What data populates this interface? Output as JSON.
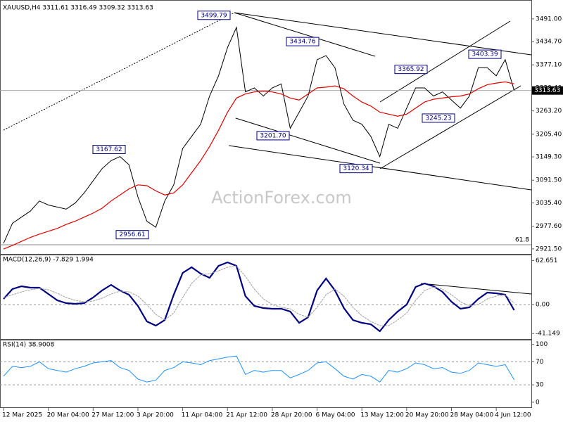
{
  "chart_data": [
    {
      "type": "line",
      "title": "XAUUSD,H4  3311.61 3316.49 3309.32 3313.63",
      "watermark": "ActionForex.com",
      "categories": [
        "12 Mar 2025",
        null,
        null,
        null,
        null,
        "20 Mar 04:00",
        null,
        null,
        null,
        null,
        "27 Mar 12:00",
        null,
        null,
        null,
        null,
        "3 Apr 20:00",
        null,
        null,
        null,
        null,
        "11 Apr 04:00",
        null,
        null,
        null,
        null,
        "21 Apr 12:00",
        null,
        null,
        null,
        null,
        "28 Apr 20:00",
        null,
        null,
        null,
        null,
        "6 May 04:00",
        null,
        null,
        null,
        null,
        "13 May 12:00",
        null,
        null,
        null,
        null,
        "20 May 20:00",
        null,
        null,
        null,
        null,
        "28 May 04:00",
        null,
        null,
        null,
        null,
        "4 Jun 12:00",
        null,
        null
      ],
      "series": [
        {
          "color": "#000000",
          "values": [
            2935,
            2985,
            3000,
            3015,
            3040,
            3030,
            3025,
            3020,
            3035,
            3060,
            3090,
            3120,
            3140,
            3150,
            3130,
            3050,
            2990,
            2975,
            3040,
            3080,
            3170,
            3200,
            3230,
            3300,
            3350,
            3420,
            3470,
            3310,
            3320,
            3300,
            3320,
            3330,
            3220,
            3260,
            3300,
            3390,
            3400,
            3370,
            3280,
            3240,
            3230,
            3200,
            3150,
            3230,
            3220,
            3270,
            3320,
            3320,
            3300,
            3310,
            3290,
            3270,
            3300,
            3370,
            3370,
            3350,
            3390,
            3313.63
          ]
        },
        {
          "color": "#e00000",
          "values": [
            2921,
            2930,
            2940,
            2950,
            2958,
            2965,
            2972,
            2982,
            2990,
            3000,
            3010,
            3022,
            3040,
            3055,
            3070,
            3080,
            3078,
            3065,
            3055,
            3060,
            3080,
            3110,
            3140,
            3175,
            3215,
            3260,
            3295,
            3305,
            3310,
            3312,
            3310,
            3305,
            3295,
            3290,
            3305,
            3320,
            3322,
            3325,
            3318,
            3300,
            3285,
            3275,
            3260,
            3255,
            3250,
            3255,
            3270,
            3285,
            3292,
            3295,
            3298,
            3300,
            3305,
            3318,
            3328,
            3332,
            3335,
            3330
          ]
        }
      ],
      "last_price": 3313.63,
      "annotations": [
        3499.79,
        3434.76,
        3365.92,
        3403.39,
        3245.23,
        {
          "value": 3201.7,
          "label": "3201.70"
        },
        3167.62,
        3120.34,
        2956.61
      ],
      "fib_label": "61.8",
      "ylim": [
        2909,
        3529
      ],
      "yticks": [
        {
          "value": 3491,
          "label": "3491.00"
        },
        {
          "value": 3434.7,
          "label": "3434.70"
        },
        {
          "value": 3377.1,
          "label": "3377.10"
        },
        {
          "value": 3320.4,
          "label": "3320.40"
        },
        {
          "value": 3263.2,
          "label": "3263.20"
        },
        {
          "value": 3205.4,
          "label": "3205.40"
        },
        {
          "value": 3149.3,
          "label": "3149.30"
        },
        {
          "value": 3091.5,
          "label": "3091.50"
        },
        {
          "value": 3035.4,
          "label": "3035.40"
        },
        {
          "value": 2977.6,
          "label": "2977.60"
        },
        {
          "value": 2921.5,
          "label": "2921.50"
        }
      ],
      "grid": false
    },
    {
      "type": "line",
      "title": "MACD(12,26,9) -7.829 1.994",
      "series": [
        {
          "color": "#000080",
          "values": [
            8,
            22,
            26,
            24,
            24,
            15,
            6,
            2,
            1,
            2,
            10,
            20,
            28,
            20,
            14,
            -2,
            -24,
            -30,
            -22,
            14,
            45,
            53,
            44,
            38,
            55,
            60,
            55,
            12,
            -2,
            -5,
            -6,
            -6,
            -10,
            -26,
            -18,
            20,
            37,
            20,
            -5,
            -22,
            -26,
            -28,
            -38,
            -22,
            -10,
            0,
            25,
            30,
            26,
            18,
            4,
            -6,
            -4,
            8,
            17,
            16,
            14,
            -8
          ]
        },
        {
          "color": "#a0a0a0",
          "values": [
            10,
            14,
            18,
            21,
            23,
            21,
            16,
            10,
            6,
            4,
            5,
            9,
            15,
            19,
            18,
            12,
            0,
            -14,
            -22,
            -12,
            10,
            30,
            42,
            44,
            48,
            53,
            55,
            40,
            22,
            8,
            0,
            -4,
            -6,
            -14,
            -18,
            -4,
            14,
            22,
            12,
            -4,
            -16,
            -24,
            -30,
            -30,
            -22,
            -12,
            6,
            20,
            25,
            22,
            14,
            4,
            -2,
            0,
            8,
            12,
            14,
            2
          ]
        }
      ],
      "levels": [
        0
      ],
      "ylim": [
        -49,
        71
      ],
      "yticks": [
        62.651,
        {
          "value": 0,
          "label": "0.00"
        },
        -41.149
      ],
      "grid": false
    },
    {
      "type": "line",
      "title": "RSI(14) 38.9008",
      "series": [
        {
          "color": "#1e90ff",
          "values": [
            45,
            62,
            60,
            62,
            70,
            58,
            55,
            52,
            58,
            62,
            68,
            70,
            72,
            60,
            55,
            40,
            35,
            38,
            55,
            60,
            70,
            68,
            65,
            72,
            75,
            78,
            80,
            48,
            55,
            52,
            55,
            55,
            42,
            48,
            55,
            68,
            70,
            58,
            45,
            40,
            48,
            45,
            35,
            55,
            52,
            58,
            68,
            65,
            58,
            60,
            52,
            50,
            55,
            68,
            65,
            62,
            65,
            38.9008
          ]
        }
      ],
      "levels": [
        70,
        30
      ],
      "ylim": [
        -10,
        107
      ],
      "yticks": [
        100,
        70,
        30,
        0
      ],
      "grid": false
    }
  ]
}
